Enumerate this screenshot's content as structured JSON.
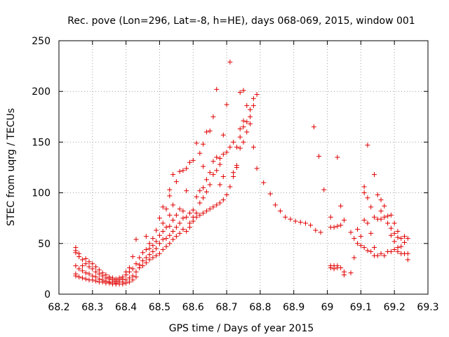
{
  "chart_data": {
    "type": "scatter",
    "title": "Rec. pove (Lon=296, Lat=-8, h=HE), days 068-069, 2015, window 001",
    "xlabel": "GPS time / Days of year 2015",
    "ylabel": "STEC from uqrg / TECUs",
    "xlim": [
      68.2,
      69.3
    ],
    "ylim": [
      0,
      250
    ],
    "xticks": [
      "68.2",
      "68.3",
      "68.4",
      "68.5",
      "68.6",
      "68.7",
      "68.8",
      "68.9",
      "69",
      "69.1",
      "69.2",
      "69.3"
    ],
    "yticks": [
      "0",
      "50",
      "100",
      "150",
      "200",
      "250"
    ],
    "grid": true,
    "marker": "+",
    "color": "#e00000",
    "points": [
      [
        68.25,
        46
      ],
      [
        68.25,
        43
      ],
      [
        68.25,
        41
      ],
      [
        68.25,
        28
      ],
      [
        68.25,
        20
      ],
      [
        68.25,
        18
      ],
      [
        68.26,
        40
      ],
      [
        68.26,
        37
      ],
      [
        68.26,
        25
      ],
      [
        68.26,
        17
      ],
      [
        68.27,
        34
      ],
      [
        68.27,
        28
      ],
      [
        68.27,
        23
      ],
      [
        68.27,
        16
      ],
      [
        68.28,
        35
      ],
      [
        68.28,
        30
      ],
      [
        68.28,
        21
      ],
      [
        68.28,
        15
      ],
      [
        68.29,
        32
      ],
      [
        68.29,
        27
      ],
      [
        68.29,
        20
      ],
      [
        68.29,
        14
      ],
      [
        68.3,
        30
      ],
      [
        68.3,
        25
      ],
      [
        68.3,
        18
      ],
      [
        68.3,
        14
      ],
      [
        68.31,
        27
      ],
      [
        68.31,
        22
      ],
      [
        68.31,
        17
      ],
      [
        68.31,
        13
      ],
      [
        68.32,
        24
      ],
      [
        68.32,
        20
      ],
      [
        68.32,
        15
      ],
      [
        68.32,
        12
      ],
      [
        68.33,
        21
      ],
      [
        68.33,
        18
      ],
      [
        68.33,
        14
      ],
      [
        68.33,
        12
      ],
      [
        68.34,
        19
      ],
      [
        68.34,
        16
      ],
      [
        68.34,
        13
      ],
      [
        68.34,
        11
      ],
      [
        68.35,
        17
      ],
      [
        68.35,
        15
      ],
      [
        68.35,
        12
      ],
      [
        68.35,
        11
      ],
      [
        68.36,
        16
      ],
      [
        68.36,
        14
      ],
      [
        68.36,
        12
      ],
      [
        68.36,
        10
      ],
      [
        68.37,
        15
      ],
      [
        68.37,
        13
      ],
      [
        68.37,
        11
      ],
      [
        68.37,
        10
      ],
      [
        68.38,
        16
      ],
      [
        68.38,
        14
      ],
      [
        68.38,
        12
      ],
      [
        68.38,
        10
      ],
      [
        68.39,
        17
      ],
      [
        68.39,
        15
      ],
      [
        68.39,
        12
      ],
      [
        68.39,
        10
      ],
      [
        68.4,
        22
      ],
      [
        68.4,
        19
      ],
      [
        68.4,
        14
      ],
      [
        68.4,
        11
      ],
      [
        68.41,
        26
      ],
      [
        68.41,
        22
      ],
      [
        68.41,
        16
      ],
      [
        68.41,
        12
      ],
      [
        68.42,
        37
      ],
      [
        68.42,
        25
      ],
      [
        68.42,
        18
      ],
      [
        68.42,
        14
      ],
      [
        68.43,
        54
      ],
      [
        68.43,
        30
      ],
      [
        68.43,
        22
      ],
      [
        68.43,
        17
      ],
      [
        68.44,
        36
      ],
      [
        68.44,
        29
      ],
      [
        68.44,
        26
      ],
      [
        68.45,
        41
      ],
      [
        68.45,
        33
      ],
      [
        68.45,
        28
      ],
      [
        68.46,
        57
      ],
      [
        68.46,
        44
      ],
      [
        68.46,
        36
      ],
      [
        68.46,
        31
      ],
      [
        68.47,
        50
      ],
      [
        68.47,
        45
      ],
      [
        68.47,
        39
      ],
      [
        68.47,
        34
      ],
      [
        68.48,
        55
      ],
      [
        68.48,
        48
      ],
      [
        68.48,
        42
      ],
      [
        68.48,
        36
      ],
      [
        68.49,
        63
      ],
      [
        68.49,
        52
      ],
      [
        68.49,
        45
      ],
      [
        68.49,
        38
      ],
      [
        68.5,
        75
      ],
      [
        68.5,
        58
      ],
      [
        68.5,
        50
      ],
      [
        68.5,
        40
      ],
      [
        68.51,
        86
      ],
      [
        68.51,
        70
      ],
      [
        68.51,
        62
      ],
      [
        68.51,
        54
      ],
      [
        68.51,
        44
      ],
      [
        68.52,
        84
      ],
      [
        68.52,
        66
      ],
      [
        68.52,
        55
      ],
      [
        68.52,
        47
      ],
      [
        68.53,
        103
      ],
      [
        68.53,
        97
      ],
      [
        68.53,
        78
      ],
      [
        68.53,
        67
      ],
      [
        68.53,
        58
      ],
      [
        68.53,
        50
      ],
      [
        68.54,
        118
      ],
      [
        68.54,
        88
      ],
      [
        68.54,
        73
      ],
      [
        68.54,
        62
      ],
      [
        68.54,
        54
      ],
      [
        68.55,
        111
      ],
      [
        68.55,
        78
      ],
      [
        68.55,
        66
      ],
      [
        68.55,
        57
      ],
      [
        68.56,
        121
      ],
      [
        68.56,
        84
      ],
      [
        68.56,
        70
      ],
      [
        68.56,
        60
      ],
      [
        68.57,
        122
      ],
      [
        68.57,
        82
      ],
      [
        68.57,
        75
      ],
      [
        68.57,
        64
      ],
      [
        68.58,
        102
      ],
      [
        68.58,
        124
      ],
      [
        68.58,
        76
      ],
      [
        68.58,
        62
      ],
      [
        68.59,
        130
      ],
      [
        68.59,
        80
      ],
      [
        68.59,
        70
      ],
      [
        68.59,
        66
      ],
      [
        68.6,
        132
      ],
      [
        68.6,
        83
      ],
      [
        68.6,
        76
      ],
      [
        68.6,
        72
      ],
      [
        68.61,
        149
      ],
      [
        68.61,
        96
      ],
      [
        68.61,
        80
      ],
      [
        68.61,
        76
      ],
      [
        68.62,
        139
      ],
      [
        68.62,
        102
      ],
      [
        68.62,
        90
      ],
      [
        68.62,
        78
      ],
      [
        68.63,
        148
      ],
      [
        68.63,
        126
      ],
      [
        68.63,
        105
      ],
      [
        68.63,
        95
      ],
      [
        68.63,
        80
      ],
      [
        68.64,
        160
      ],
      [
        68.64,
        113
      ],
      [
        68.64,
        101
      ],
      [
        68.64,
        82
      ],
      [
        68.65,
        161
      ],
      [
        68.65,
        120
      ],
      [
        68.65,
        108
      ],
      [
        68.65,
        84
      ],
      [
        68.66,
        175
      ],
      [
        68.66,
        131
      ],
      [
        68.66,
        118
      ],
      [
        68.66,
        86
      ],
      [
        68.67,
        202
      ],
      [
        68.67,
        135
      ],
      [
        68.67,
        122
      ],
      [
        68.67,
        88
      ],
      [
        68.68,
        134
      ],
      [
        68.68,
        128
      ],
      [
        68.68,
        108
      ],
      [
        68.68,
        90
      ],
      [
        68.69,
        157
      ],
      [
        68.69,
        138
      ],
      [
        68.69,
        116
      ],
      [
        68.69,
        93
      ],
      [
        68.7,
        187
      ],
      [
        68.7,
        140
      ],
      [
        68.7,
        98
      ],
      [
        68.71,
        229
      ],
      [
        68.71,
        145
      ],
      [
        68.71,
        106
      ],
      [
        68.72,
        150
      ],
      [
        68.72,
        120
      ],
      [
        68.72,
        116
      ],
      [
        68.73,
        145
      ],
      [
        68.73,
        125
      ],
      [
        68.73,
        127
      ],
      [
        68.74,
        199
      ],
      [
        68.74,
        163
      ],
      [
        68.74,
        155
      ],
      [
        68.74,
        144
      ],
      [
        68.75,
        201
      ],
      [
        68.75,
        171
      ],
      [
        68.75,
        165
      ],
      [
        68.75,
        150
      ],
      [
        68.76,
        186
      ],
      [
        68.76,
        170
      ],
      [
        68.76,
        160
      ],
      [
        68.77,
        182
      ],
      [
        68.77,
        175
      ],
      [
        68.77,
        168
      ],
      [
        68.78,
        193
      ],
      [
        68.78,
        186
      ],
      [
        68.78,
        145
      ],
      [
        68.79,
        197
      ],
      [
        68.79,
        124
      ],
      [
        68.81,
        110
      ],
      [
        68.83,
        99
      ],
      [
        68.845,
        88
      ],
      [
        68.86,
        82
      ],
      [
        68.875,
        76
      ],
      [
        68.89,
        74
      ],
      [
        68.905,
        72
      ],
      [
        68.92,
        71
      ],
      [
        68.935,
        70
      ],
      [
        68.95,
        68
      ],
      [
        68.96,
        165
      ],
      [
        68.965,
        63
      ],
      [
        68.975,
        136
      ],
      [
        68.98,
        61
      ],
      [
        68.99,
        103
      ],
      [
        69.01,
        76
      ],
      [
        69.01,
        66
      ],
      [
        69.01,
        28
      ],
      [
        69.01,
        26
      ],
      [
        69.02,
        66
      ],
      [
        69.02,
        28
      ],
      [
        69.02,
        25
      ],
      [
        69.03,
        135
      ],
      [
        69.03,
        67
      ],
      [
        69.03,
        28
      ],
      [
        69.03,
        26
      ],
      [
        69.04,
        87
      ],
      [
        69.04,
        68
      ],
      [
        69.04,
        26
      ],
      [
        69.05,
        73
      ],
      [
        69.05,
        22
      ],
      [
        69.05,
        19
      ],
      [
        69.07,
        61
      ],
      [
        69.07,
        21
      ],
      [
        69.08,
        55
      ],
      [
        69.08,
        36
      ],
      [
        69.09,
        64
      ],
      [
        69.09,
        50
      ],
      [
        69.1,
        57
      ],
      [
        69.1,
        48
      ],
      [
        69.11,
        106
      ],
      [
        69.11,
        100
      ],
      [
        69.11,
        73
      ],
      [
        69.11,
        46
      ],
      [
        69.12,
        147
      ],
      [
        69.12,
        95
      ],
      [
        69.12,
        70
      ],
      [
        69.12,
        43
      ],
      [
        69.13,
        86
      ],
      [
        69.13,
        60
      ],
      [
        69.13,
        42
      ],
      [
        69.14,
        118
      ],
      [
        69.14,
        76
      ],
      [
        69.14,
        46
      ],
      [
        69.14,
        38
      ],
      [
        69.15,
        98
      ],
      [
        69.15,
        74
      ],
      [
        69.15,
        38
      ],
      [
        69.16,
        93
      ],
      [
        69.16,
        82
      ],
      [
        69.16,
        74
      ],
      [
        69.16,
        40
      ],
      [
        69.17,
        87
      ],
      [
        69.17,
        76
      ],
      [
        69.17,
        38
      ],
      [
        69.18,
        77
      ],
      [
        69.18,
        70
      ],
      [
        69.18,
        42
      ],
      [
        69.19,
        78
      ],
      [
        69.19,
        65
      ],
      [
        69.19,
        58
      ],
      [
        69.19,
        42
      ],
      [
        69.2,
        70
      ],
      [
        69.2,
        60
      ],
      [
        69.2,
        52
      ],
      [
        69.2,
        44
      ],
      [
        69.21,
        62
      ],
      [
        69.21,
        56
      ],
      [
        69.21,
        46
      ],
      [
        69.21,
        42
      ],
      [
        69.22,
        55
      ],
      [
        69.22,
        47
      ],
      [
        69.22,
        40
      ],
      [
        69.23,
        57
      ],
      [
        69.23,
        51
      ],
      [
        69.23,
        40
      ],
      [
        69.24,
        55
      ],
      [
        69.24,
        40
      ],
      [
        69.24,
        34
      ]
    ]
  }
}
